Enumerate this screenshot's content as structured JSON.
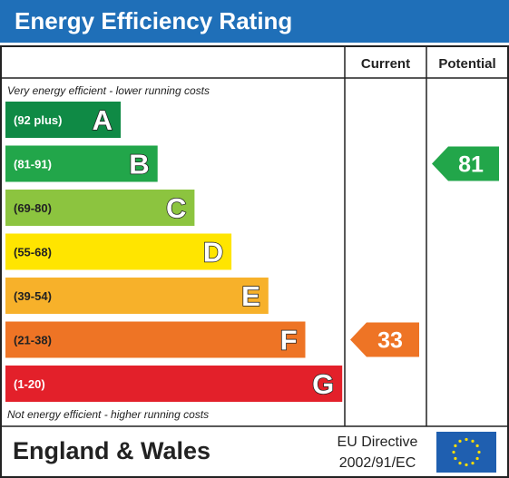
{
  "title": "Energy Efficiency Rating",
  "headers": {
    "current": "Current",
    "potential": "Potential"
  },
  "top_note": "Very energy efficient - lower running costs",
  "bottom_note": "Not energy efficient - higher running costs",
  "footer": {
    "region": "England & Wales",
    "directive_line1": "EU Directive",
    "directive_line2": "2002/91/EC"
  },
  "colors": {
    "title_bg": "#1f6fb8",
    "eu_flag_bg": "#1f5fb0",
    "eu_stars": "#ffdd00"
  },
  "chart_data": {
    "type": "bar",
    "categories": [
      "A",
      "B",
      "C",
      "D",
      "E",
      "F",
      "G"
    ],
    "bands": [
      {
        "letter": "A",
        "range": "(92 plus)",
        "color": "#0f8a45",
        "text_color": "#ffffff"
      },
      {
        "letter": "B",
        "range": "(81-91)",
        "color": "#22a64a",
        "text_color": "#ffffff"
      },
      {
        "letter": "C",
        "range": "(69-80)",
        "color": "#8cc43f",
        "text_color": "#222222"
      },
      {
        "letter": "D",
        "range": "(55-68)",
        "color": "#ffe500",
        "text_color": "#222222"
      },
      {
        "letter": "E",
        "range": "(39-54)",
        "color": "#f7b12a",
        "text_color": "#222222"
      },
      {
        "letter": "F",
        "range": "(21-38)",
        "color": "#ee7425",
        "text_color": "#222222"
      },
      {
        "letter": "G",
        "range": "(1-20)",
        "color": "#e3202a",
        "text_color": "#ffffff"
      }
    ],
    "current": {
      "value": 33,
      "band": "F",
      "color": "#ee7425"
    },
    "potential": {
      "value": 81,
      "band": "B",
      "color": "#22a64a"
    }
  }
}
